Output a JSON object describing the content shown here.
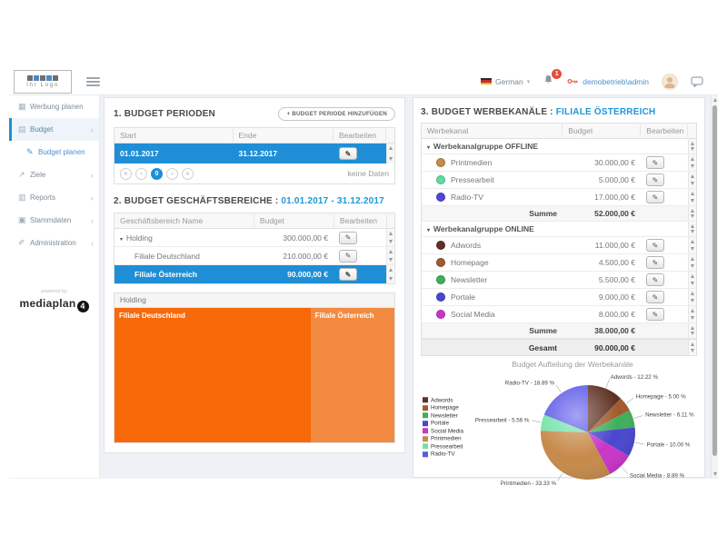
{
  "header": {
    "logo_text": "Ihr Logo",
    "language": "German",
    "notification_count": "1",
    "username": "demobetrieb\\admin"
  },
  "sidebar": {
    "items": [
      {
        "label": "Werbung planen",
        "icon": "calendar-icon",
        "active": false,
        "chevron": false,
        "sub": false
      },
      {
        "label": "Budget",
        "icon": "money-icon",
        "active": true,
        "chevron": true,
        "sub": false
      },
      {
        "label": "Budget planen",
        "icon": "pencil-icon",
        "active": false,
        "chevron": false,
        "sub": true
      },
      {
        "label": "Ziele",
        "icon": "goals-icon",
        "active": false,
        "chevron": true,
        "sub": false
      },
      {
        "label": "Reports",
        "icon": "reports-icon",
        "active": false,
        "chevron": true,
        "sub": false
      },
      {
        "label": "Stammdaten",
        "icon": "masterdata-icon",
        "active": false,
        "chevron": true,
        "sub": false
      },
      {
        "label": "Administration",
        "icon": "admin-icon",
        "active": false,
        "chevron": true,
        "sub": false
      }
    ],
    "powered_by": "powered by",
    "brand": "mediaplan",
    "brand_badge": "4"
  },
  "section1": {
    "title": "1. BUDGET PERIODEN",
    "add_button": "+ BUDGET PERIODE HINZUFÜGEN",
    "columns": [
      "Start",
      "Ende",
      "Bearbeiten"
    ],
    "rows": [
      {
        "start": "01.01.2017",
        "ende": "31.12.2017",
        "selected": true
      }
    ],
    "pagination_current": "0",
    "no_data": "keine Daten"
  },
  "section2": {
    "title": "2. BUDGET GESCHÄFTSBEREICHE :",
    "period": "01.01.2017 - 31.12.2017",
    "columns": [
      "Geschäftsbereich Name",
      "Budget",
      "Bearbeiten"
    ],
    "rows": [
      {
        "name": "Holding",
        "budget": "300.000,00 €",
        "level": 0,
        "caret": true,
        "selected": false
      },
      {
        "name": "Filiale Deutschland",
        "budget": "210.000,00 €",
        "level": 1,
        "caret": false,
        "selected": false
      },
      {
        "name": "Filiale Österreich",
        "budget": "90.000,00 €",
        "level": 1,
        "caret": false,
        "selected": true
      }
    ]
  },
  "treemap": {
    "title": "Holding",
    "cells": [
      {
        "label": "Filiale Deutschland",
        "value": 210000,
        "color": "#f8690a"
      },
      {
        "label": "Filiale Österreich",
        "value": 90000,
        "color": "#f28b41"
      }
    ]
  },
  "section3": {
    "title": "3. BUDGET WERBEKANÄLE :",
    "filiale": "FILIALE ÖSTERREICH",
    "columns": [
      "Werbekanal",
      "Budget",
      "Bearbeiten"
    ],
    "groups": [
      {
        "name": "Werbekanalgruppe OFFLINE",
        "rows": [
          {
            "label": "Printmedien",
            "budget": "30.000,00 €",
            "color": "#c68a4b"
          },
          {
            "label": "Pressearbeit",
            "budget": "5.000,00 €",
            "color": "#5fdca0"
          },
          {
            "label": "Radio-TV",
            "budget": "17.000,00 €",
            "color": "#4f46d8"
          }
        ],
        "summe_label": "Summe",
        "summe": "52.000,00 €"
      },
      {
        "name": "Werbekanalgruppe ONLINE",
        "rows": [
          {
            "label": "Adwords",
            "budget": "11.000,00 €",
            "color": "#5e3123"
          },
          {
            "label": "Homepage",
            "budget": "4.500,00 €",
            "color": "#a05a2c"
          },
          {
            "label": "Newsletter",
            "budget": "5.500,00 €",
            "color": "#3fae5a"
          },
          {
            "label": "Portale",
            "budget": "9.000,00 €",
            "color": "#4946cf"
          },
          {
            "label": "Social Media",
            "budget": "8.000,00 €",
            "color": "#c935c9"
          }
        ],
        "summe_label": "Summe",
        "summe": "38.000,00 €"
      }
    ],
    "gesamt_label": "Gesamt",
    "gesamt": "90.000,00 €"
  },
  "chart_data": {
    "type": "pie",
    "title": "Budget Aufteilung der Werbekanäle",
    "legend_position": "left",
    "label_format": "{label} - {pct} %",
    "slices": [
      {
        "label": "Adwords",
        "value": 11000,
        "pct": 12.22,
        "color": "#5e3123"
      },
      {
        "label": "Homepage",
        "value": 4500,
        "pct": 5.0,
        "color": "#a05a2c"
      },
      {
        "label": "Newsletter",
        "value": 5500,
        "pct": 6.11,
        "color": "#3fae5a"
      },
      {
        "label": "Portale",
        "value": 9000,
        "pct": 10.0,
        "color": "#4946cf"
      },
      {
        "label": "Social Media",
        "value": 8000,
        "pct": 8.89,
        "color": "#c935c9"
      },
      {
        "label": "Printmedien",
        "value": 30000,
        "pct": 33.33,
        "color": "#c68a4b"
      },
      {
        "label": "Pressearbeit",
        "value": 5000,
        "pct": 5.56,
        "color": "#72e2a6"
      },
      {
        "label": "Radio-TV",
        "value": 17000,
        "pct": 18.89,
        "color": "#5b57e8"
      }
    ]
  }
}
